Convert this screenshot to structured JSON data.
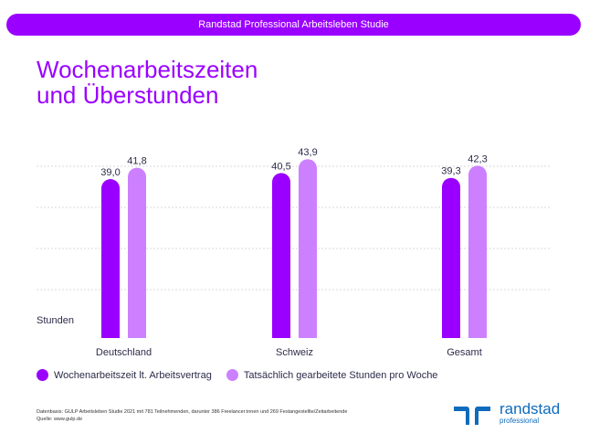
{
  "header": {
    "banner": "Randstad Professional Arbeitsleben Studie"
  },
  "title": {
    "line1": "Wochenarbeitszeiten",
    "line2": "und Überstunden"
  },
  "chart_data": {
    "type": "bar",
    "title": "Wochenarbeitszeiten und Überstunden",
    "ylabel": "Stunden",
    "categories": [
      "Deutschland",
      "Schweiz",
      "Gesamt"
    ],
    "series": [
      {
        "name": "Wochenarbeitszeit lt. Arbeitsvertrag",
        "values": [
          39.0,
          40.5,
          39.3
        ],
        "labels": [
          "39,0",
          "40,5",
          "39,3"
        ],
        "color": "#9a00ff"
      },
      {
        "name": "Tatsächlich gearbeitete Stunden pro Woche",
        "values": [
          41.8,
          43.9,
          42.3
        ],
        "labels": [
          "41,8",
          "43,9",
          "42,3"
        ],
        "color": "#cc80ff"
      }
    ],
    "ylim": [
      0,
      45
    ],
    "grid": true,
    "legend": "bottom-left"
  },
  "footer": {
    "source1": "Datenbasis: GULP Arbeitsleben Studie 2021 mit 781 Teilnehmenden, darunter 386 Freelancer:innen und 269 Festangestellte/Zeitarbeitende",
    "source2": "Quelle: www.gulp.de"
  },
  "logo": {
    "name": "randstad",
    "sub": "professional",
    "color": "#0f6cbd"
  }
}
